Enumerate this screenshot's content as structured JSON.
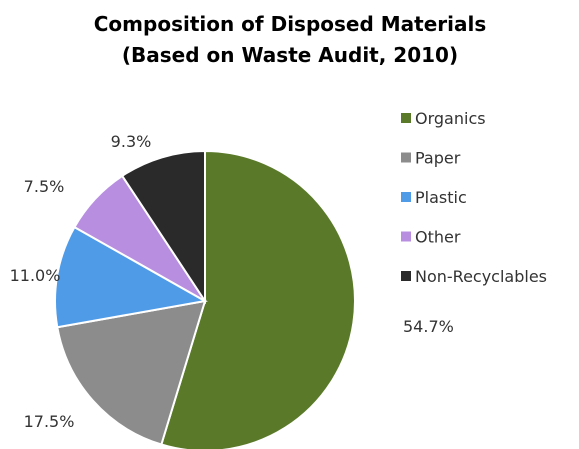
{
  "chart_data": {
    "type": "pie",
    "title": "Composition of Disposed Materials",
    "subtitle": "(Based on Waste Audit, 2010)",
    "legend_position": "right",
    "slices": [
      {
        "name": "Organics",
        "value": 54.7,
        "label": "54.7%",
        "color": "#5a7a2a"
      },
      {
        "name": "Paper",
        "value": 17.5,
        "label": "17.5%",
        "color": "#8c8c8c"
      },
      {
        "name": "Plastic",
        "value": 11.0,
        "label": "11.0%",
        "color": "#4f9be8"
      },
      {
        "name": "Other",
        "value": 7.5,
        "label": "7.5%",
        "color": "#b88fe0"
      },
      {
        "name": "Non-Recyclables",
        "value": 9.3,
        "label": "9.3%",
        "color": "#2a2a2a"
      }
    ]
  }
}
